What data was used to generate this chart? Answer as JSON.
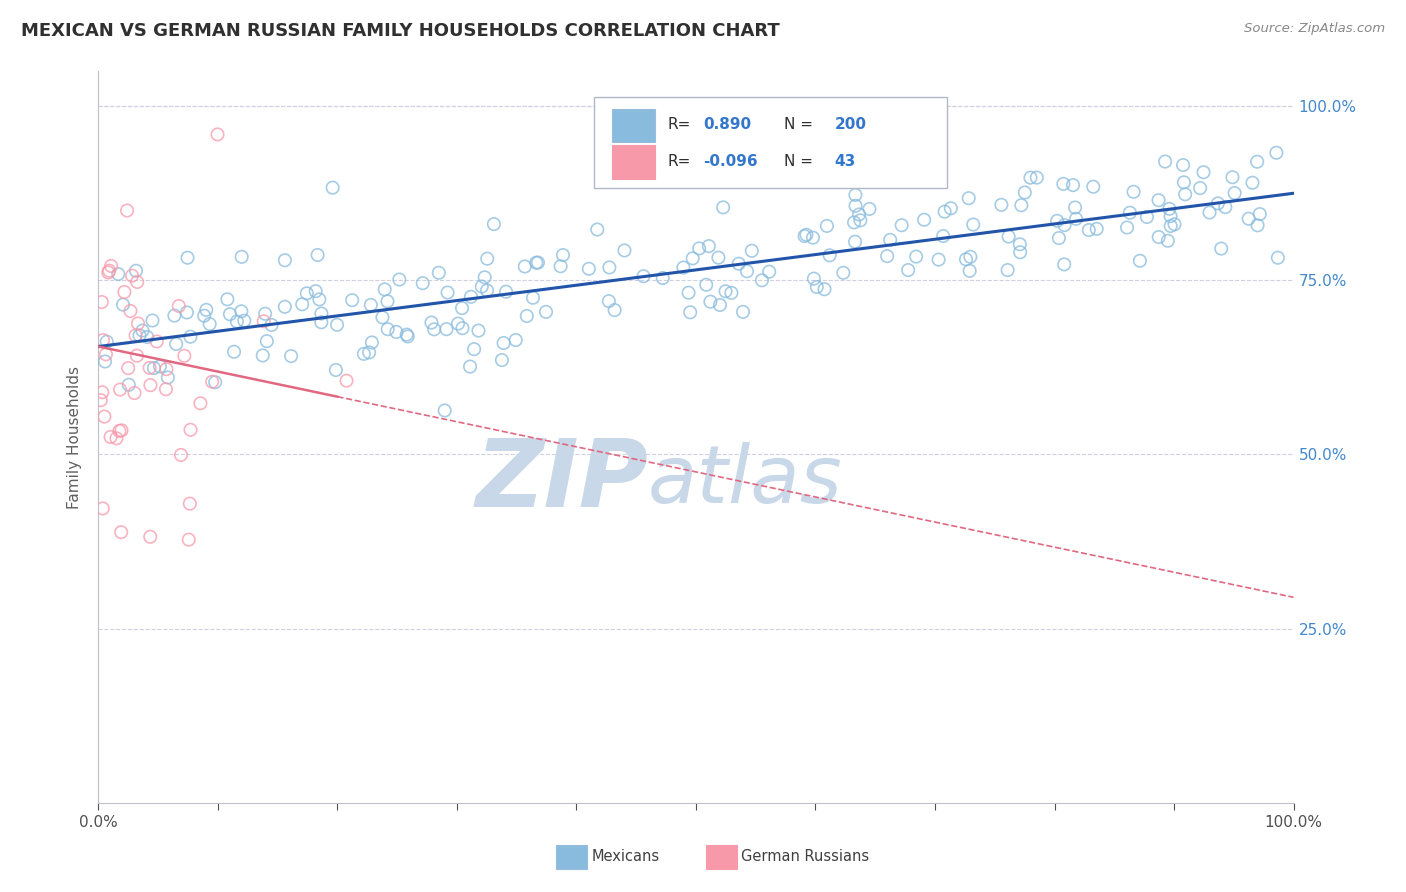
{
  "title": "MEXICAN VS GERMAN RUSSIAN FAMILY HOUSEHOLDS CORRELATION CHART",
  "source_text": "Source: ZipAtlas.com",
  "ylabel": "Family Households",
  "xlim": [
    0.0,
    1.0
  ],
  "ylim": [
    0.0,
    1.05
  ],
  "right_ytick_labels": [
    "100.0%",
    "75.0%",
    "50.0%",
    "25.0%"
  ],
  "right_ytick_values": [
    1.0,
    0.75,
    0.5,
    0.25
  ],
  "xtick_labels_edge": [
    "0.0%",
    "100.0%"
  ],
  "xtick_values_edge": [
    0.0,
    1.0
  ],
  "blue_dot_color": "#88bbdd",
  "pink_dot_color": "#f899aa",
  "blue_line_color": "#2255aa",
  "pink_line_color": "#e06880",
  "watermark_zip": "ZIP",
  "watermark_atlas": "atlas",
  "watermark_color": "#c8d8e8",
  "background_color": "#ffffff",
  "grid_color": "#d0d0e0",
  "title_fontsize": 13,
  "axis_label_fontsize": 11,
  "tick_fontsize": 11,
  "blue_line_x0": 0.0,
  "blue_line_x1": 1.0,
  "blue_line_y0": 0.655,
  "blue_line_y1": 0.875,
  "pink_line_x0": 0.0,
  "pink_line_x1": 1.0,
  "pink_line_y0": 0.655,
  "pink_line_y1": 0.295,
  "random_seed_blue": 42,
  "random_seed_pink": 77,
  "N_blue": 200,
  "N_pink": 43,
  "legend_r1": "0.890",
  "legend_n1": "200",
  "legend_r2": "-0.096",
  "legend_n2": "43"
}
